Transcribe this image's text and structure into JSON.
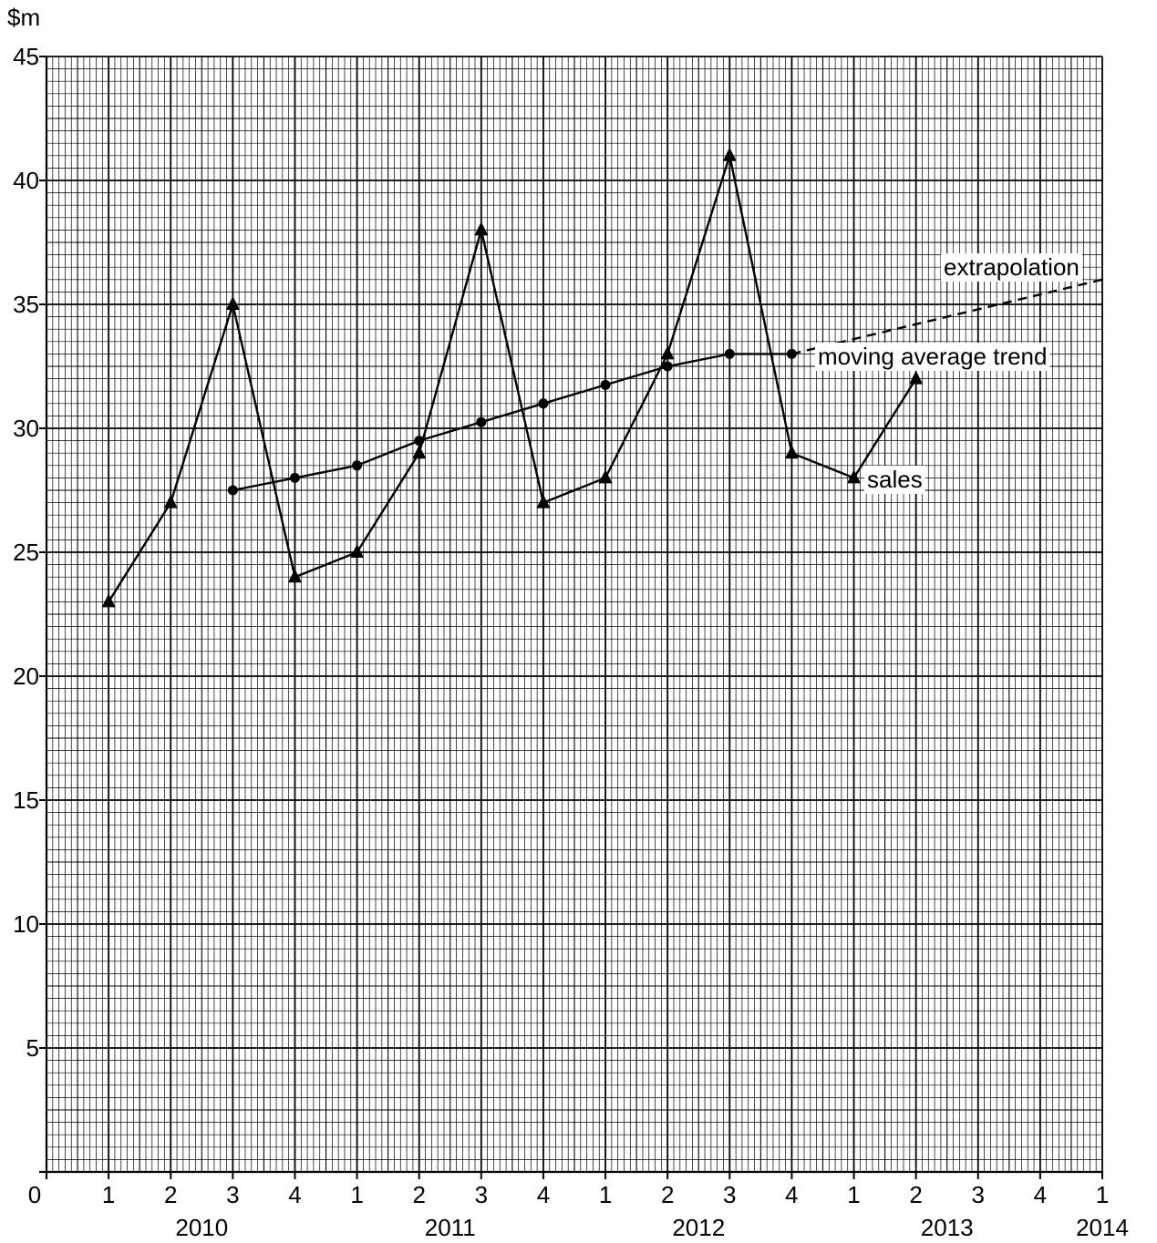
{
  "chart_data": {
    "type": "line",
    "title": "",
    "ylabel": "$m",
    "xlabel": "",
    "ylim": [
      0,
      45
    ],
    "yticks": [
      5,
      10,
      15,
      20,
      25,
      30,
      35,
      40,
      45
    ],
    "origin_label": "0",
    "xlim": [
      0,
      17
    ],
    "quarter_labels": [
      "1",
      "2",
      "3",
      "4",
      "1",
      "2",
      "3",
      "4",
      "1",
      "2",
      "3",
      "4",
      "1",
      "2",
      "3",
      "4",
      "1"
    ],
    "years": [
      "2010",
      "2011",
      "2012",
      "2013",
      "2014"
    ],
    "grid": true,
    "series": [
      {
        "name": "sales",
        "marker": "triangle",
        "style": "solid",
        "x": [
          1,
          2,
          3,
          4,
          5,
          6,
          7,
          8,
          9,
          10,
          11,
          12,
          13,
          14
        ],
        "values": [
          23,
          27,
          35,
          24,
          25,
          29,
          38,
          27,
          28,
          33,
          41,
          29,
          28,
          32
        ]
      },
      {
        "name": "moving average trend",
        "marker": "circle",
        "style": "solid",
        "x": [
          3,
          4,
          5,
          6,
          7,
          8,
          9,
          10,
          11,
          12
        ],
        "values": [
          27.5,
          28,
          28.5,
          29.5,
          30.25,
          31,
          31.75,
          32.5,
          33,
          33
        ]
      },
      {
        "name": "extrapolation",
        "marker": "none",
        "style": "dashed",
        "x": [
          12,
          17
        ],
        "values": [
          33,
          36
        ]
      }
    ]
  }
}
